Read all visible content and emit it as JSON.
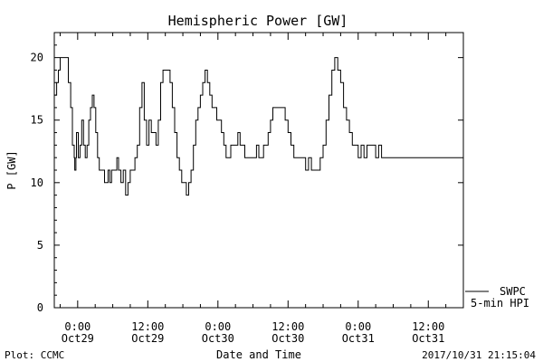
{
  "chart_data": {
    "type": "line",
    "title": "Hemispheric Power [GW]",
    "xlabel": "Date and Time",
    "ylabel": "P [GW]",
    "ylim": [
      0,
      22
    ],
    "xlim_hours": [
      -4,
      66
    ],
    "y_ticks": [
      0,
      5,
      10,
      15,
      20
    ],
    "x_ticks": [
      {
        "time": "0:00",
        "date": "Oct29"
      },
      {
        "time": "12:00",
        "date": "Oct29"
      },
      {
        "time": "0:00",
        "date": "Oct30"
      },
      {
        "time": "12:00",
        "date": "Oct30"
      },
      {
        "time": "0:00",
        "date": "Oct31"
      },
      {
        "time": "12:00",
        "date": "Oct31"
      }
    ],
    "legend": {
      "placement": "bottom-right",
      "entries": [
        "SWPC",
        "5-min HPI"
      ]
    },
    "series": [
      {
        "name": "SWPC",
        "x_hours": [
          -4.0,
          -3.6,
          -3.3,
          -3.0,
          -2.4,
          -2.2,
          -1.6,
          -1.2,
          -0.9,
          -0.6,
          -0.5,
          -0.3,
          -0.2,
          0.1,
          0.4,
          0.7,
          1.0,
          1.3,
          1.6,
          1.9,
          2.2,
          2.5,
          2.8,
          3.1,
          3.4,
          3.7,
          4.0,
          4.3,
          4.6,
          4.9,
          5.2,
          5.5,
          5.8,
          6.1,
          6.4,
          6.7,
          7.0,
          7.4,
          7.8,
          8.2,
          8.6,
          9.0,
          9.4,
          9.8,
          10.2,
          10.6,
          11.0,
          11.4,
          11.8,
          12.2,
          12.6,
          13.0,
          13.4,
          13.8,
          14.2,
          14.6,
          15.0,
          15.4,
          15.8,
          16.2,
          16.6,
          17.0,
          17.4,
          17.8,
          18.2,
          18.6,
          19.0,
          19.4,
          19.8,
          20.2,
          20.6,
          21.0,
          21.4,
          21.8,
          22.2,
          22.6,
          23.0,
          23.4,
          23.8,
          24.2,
          24.6,
          25.0,
          25.4,
          25.8,
          26.2,
          26.6,
          27.0,
          27.4,
          27.8,
          28.2,
          28.6,
          29.0,
          29.4,
          29.8,
          30.2,
          30.6,
          31.0,
          31.4,
          31.8,
          32.2,
          32.6,
          33.0,
          33.4,
          33.8,
          34.2,
          34.6,
          35.0,
          35.5,
          36.0,
          36.5,
          37.0,
          37.5,
          38.0,
          38.5,
          39.0,
          39.5,
          40.0,
          40.5,
          41.0,
          41.5,
          42.0,
          42.5,
          43.0,
          43.5,
          44.0,
          44.5,
          45.0,
          45.5,
          46.0,
          46.5,
          47.0,
          47.5,
          48.0,
          48.5,
          49.0,
          49.5,
          50.0,
          50.5,
          51.0,
          51.5,
          52.0,
          52.5,
          53.0,
          53.5,
          54.0,
          54.5,
          55.0,
          55.4,
          55.8,
          56.2,
          56.6,
          57.0,
          57.4,
          57.8,
          58.2,
          58.6,
          59.0,
          59.4,
          59.8,
          60.2,
          60.6,
          61.0,
          61.4,
          61.8,
          62.2,
          62.6,
          63.0,
          63.4,
          63.8,
          64.2,
          64.6,
          65.0,
          65.4,
          65.8,
          66.0
        ],
        "values": [
          17,
          18,
          19,
          20,
          20,
          20,
          18,
          16,
          13,
          12,
          11,
          12,
          14,
          12,
          13,
          15,
          13,
          12,
          13,
          15,
          16,
          17,
          16,
          14,
          12,
          11,
          11,
          11,
          10,
          10,
          11,
          10,
          11,
          11,
          11,
          12,
          11,
          10,
          11,
          9,
          10,
          11,
          11,
          12,
          13,
          16,
          18,
          15,
          13,
          15,
          14,
          14,
          13,
          15,
          18,
          19,
          19,
          19,
          18,
          16,
          14,
          12,
          11,
          10,
          10,
          9,
          10,
          11,
          13,
          15,
          16,
          17,
          18,
          19,
          18,
          17,
          16,
          16,
          15,
          15,
          14,
          13,
          12,
          12,
          13,
          13,
          13,
          14,
          13,
          13,
          12,
          12,
          12,
          12,
          12,
          13,
          12,
          12,
          13,
          13,
          14,
          15,
          16,
          16,
          16,
          16,
          16,
          15,
          14,
          13,
          12,
          12,
          12,
          12,
          11,
          12,
          11,
          11,
          11,
          12,
          13,
          15,
          17,
          19,
          20,
          19,
          18,
          16,
          15,
          14,
          13,
          13,
          12,
          13,
          12,
          13,
          13,
          13,
          12,
          13,
          12,
          12,
          12,
          12,
          12,
          12,
          12,
          12,
          12,
          12,
          12,
          12,
          12,
          12,
          12,
          12,
          12,
          12,
          12,
          12,
          12,
          12,
          12,
          12,
          12,
          12,
          12,
          12,
          12,
          12,
          12,
          12,
          12,
          12,
          12
        ]
      }
    ]
  },
  "footer": {
    "left": "Plot: CCMC",
    "right": "2017/10/31 21:15:04"
  }
}
